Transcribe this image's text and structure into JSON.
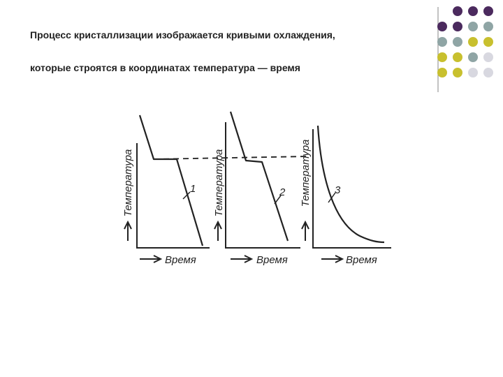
{
  "title_lines": [
    "Процесс кристаллизации изображается кривыми охлаждения,",
    "которые строятся в координатах температура — время"
  ],
  "panels": [
    {
      "y_label": "Температура",
      "x_label": "Время",
      "curve_label": "1"
    },
    {
      "y_label": "Температура",
      "x_label": "Время",
      "curve_label": "2"
    },
    {
      "y_label": "Температура",
      "x_label": "Время",
      "curve_label": "3"
    }
  ]
}
